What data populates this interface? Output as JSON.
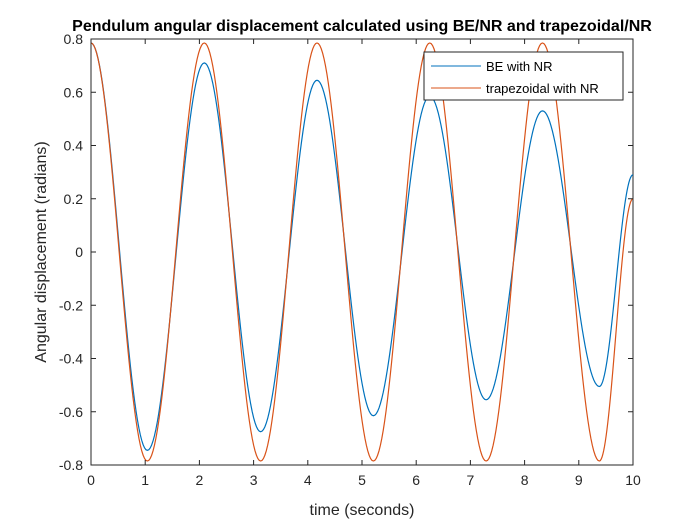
{
  "chart_data": {
    "type": "line",
    "title": "Pendulum angular displacement calculated using BE/NR and trapezoidal/NR",
    "xlabel": "time (seconds)",
    "ylabel": "Angular displacement (radians)",
    "xlim": [
      0,
      10
    ],
    "ylim": [
      -0.8,
      0.8
    ],
    "xticks": [
      "0",
      "1",
      "2",
      "3",
      "4",
      "5",
      "6",
      "7",
      "8",
      "9",
      "10"
    ],
    "yticks": [
      "0.8",
      "0.6",
      "0.4",
      "0.2",
      "0",
      "-0.2",
      "-0.4",
      "-0.6",
      "-0.8"
    ],
    "grid": false,
    "legend_position": "top-right",
    "series": [
      {
        "name": "BE with NR",
        "color": "#0072BD",
        "x": [
          0,
          1.04,
          2.09,
          3.13,
          4.17,
          5.21,
          6.25,
          7.29,
          8.33,
          9.38,
          10
        ],
        "y": [
          0.785,
          -0.745,
          0.71,
          -0.675,
          0.645,
          -0.615,
          0.585,
          -0.555,
          0.53,
          -0.505,
          0.29
        ]
      },
      {
        "name": "trapezoidal with NR",
        "color": "#D95319",
        "x": [
          0,
          1.04,
          2.09,
          3.13,
          4.17,
          5.21,
          6.25,
          7.29,
          8.33,
          9.38,
          10
        ],
        "y": [
          0.785,
          -0.785,
          0.785,
          -0.785,
          0.785,
          -0.785,
          0.785,
          -0.785,
          0.785,
          -0.785,
          0.2
        ]
      }
    ]
  }
}
